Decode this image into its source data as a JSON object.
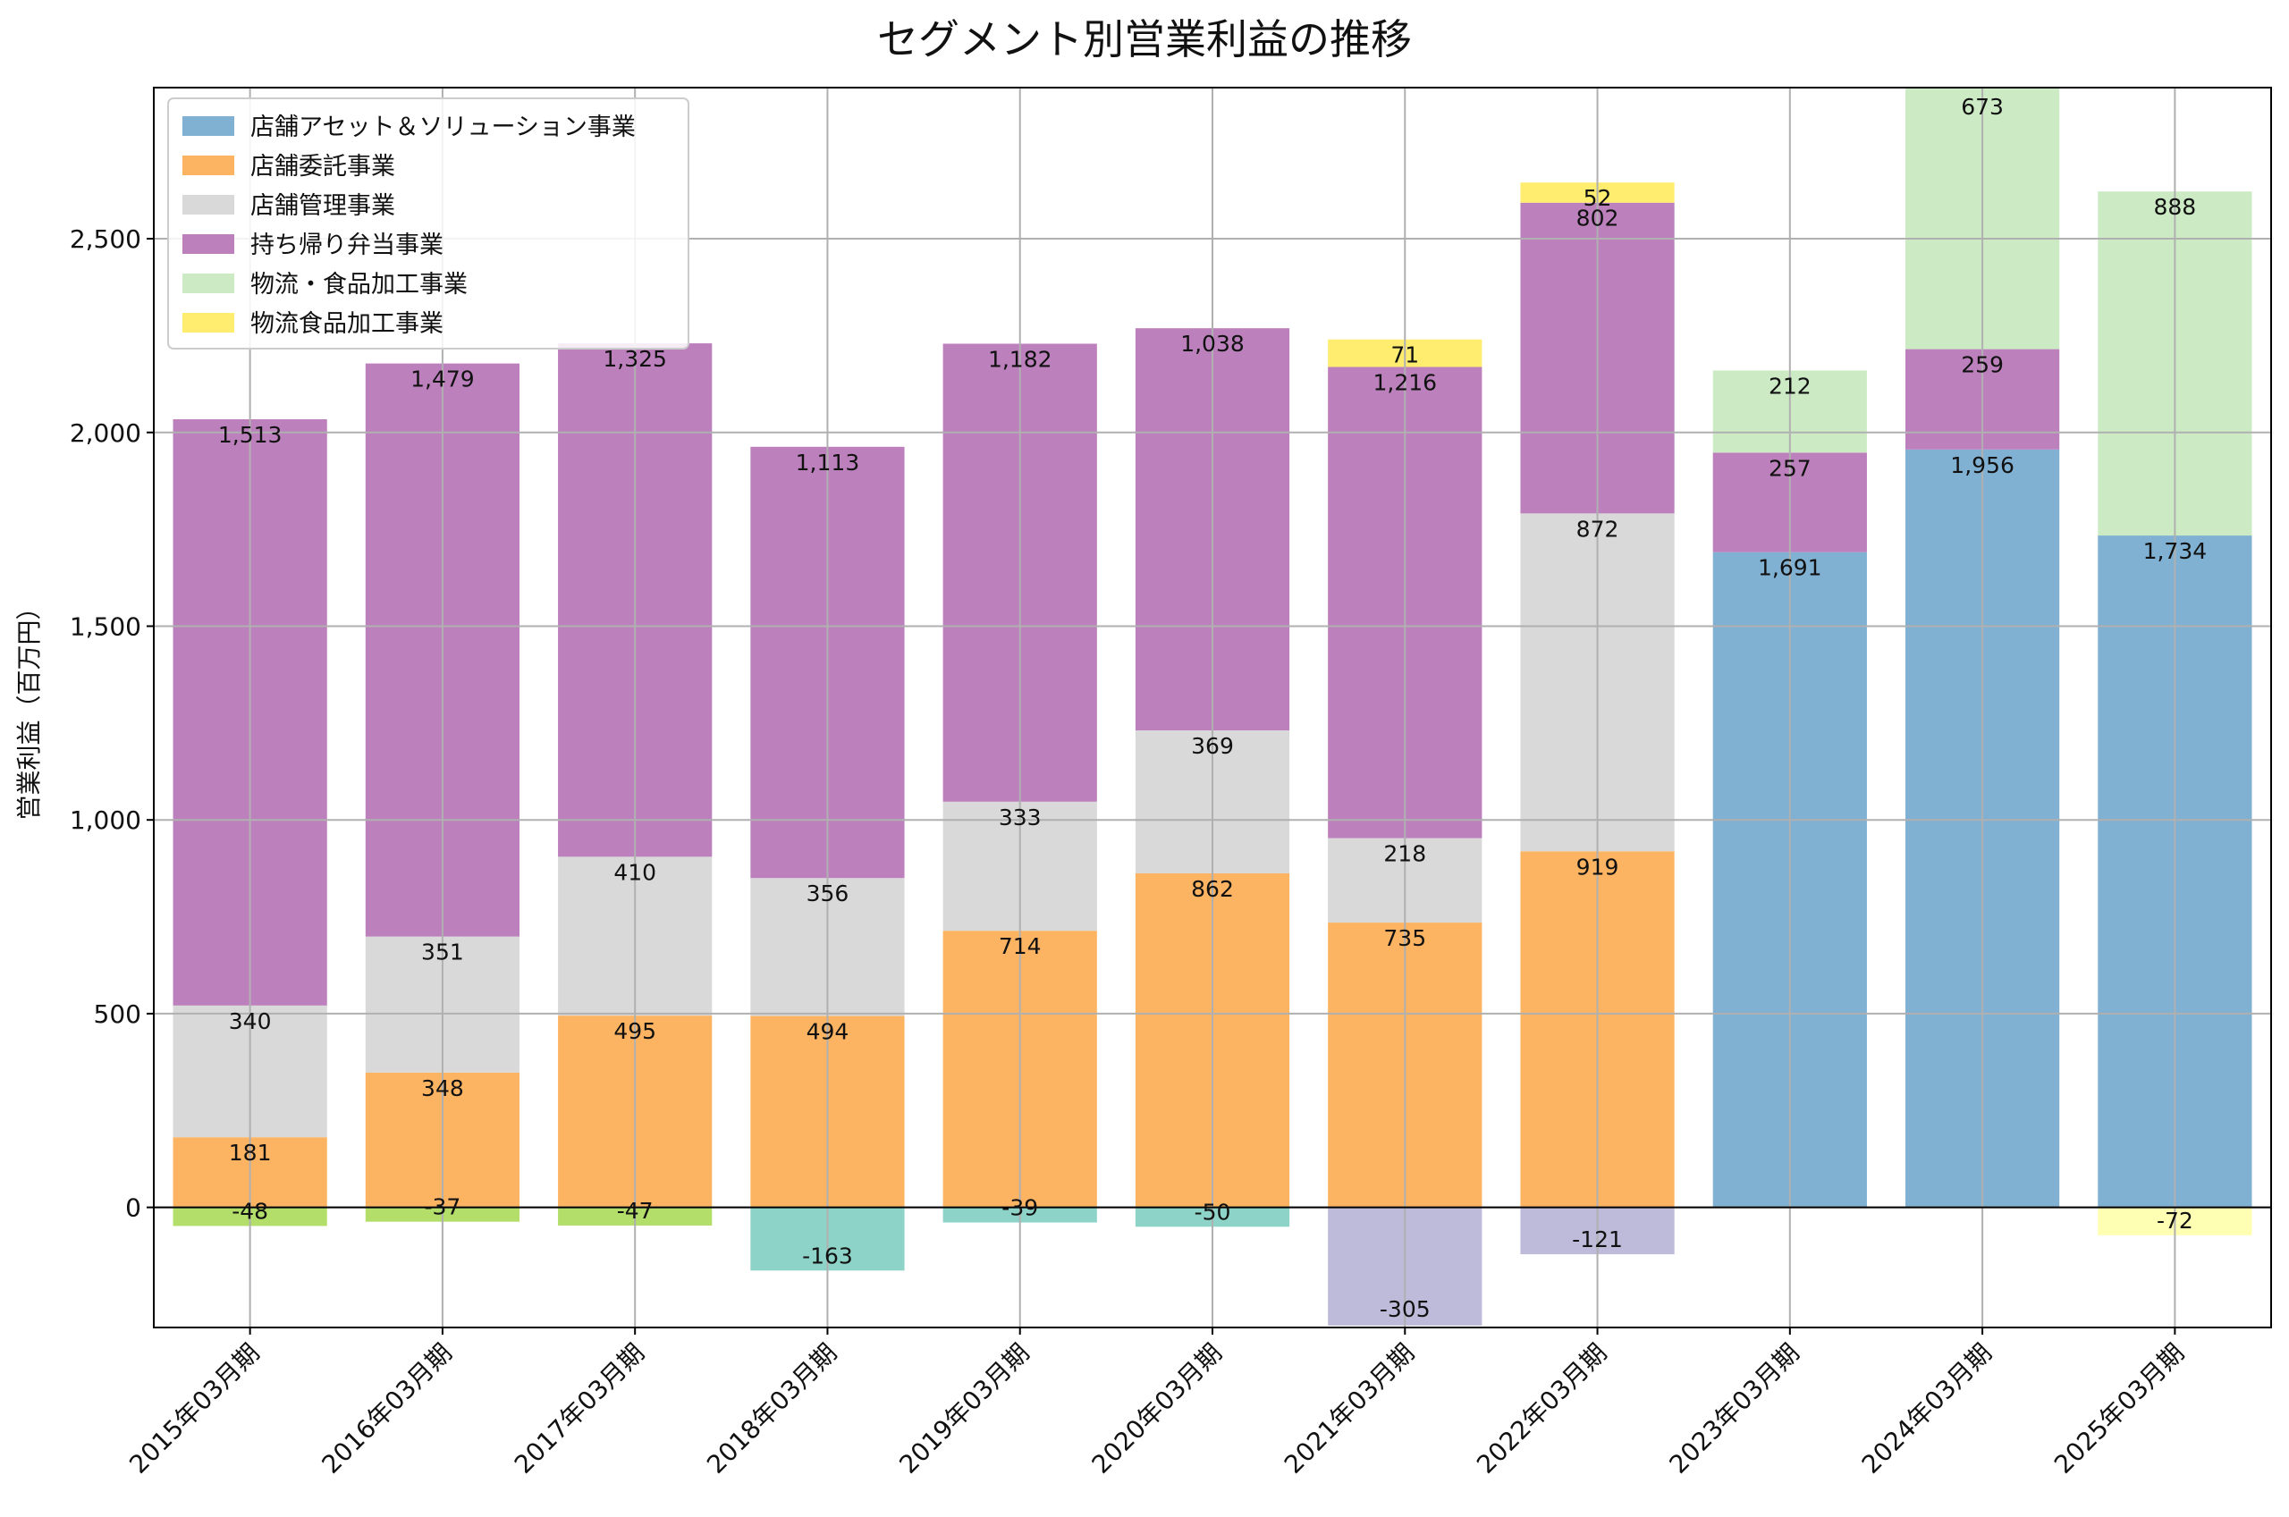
{
  "chart_data": {
    "type": "bar",
    "stacked": true,
    "title": "セグメント別営業利益の推移",
    "ylabel": "営業利益（百万円）",
    "xlabel": "",
    "ylim": [
      -310,
      2890
    ],
    "yticks": [
      0,
      500,
      1000,
      1500,
      2000,
      2500
    ],
    "ytick_labels": [
      "0",
      "500",
      "1,000",
      "1,500",
      "2,000",
      "2,500"
    ],
    "grid": true,
    "legend_position": "top-left",
    "categories": [
      "2015年03月期",
      "2016年03月期",
      "2017年03月期",
      "2018年03月期",
      "2019年03月期",
      "2020年03月期",
      "2021年03月期",
      "2022年03月期",
      "2023年03月期",
      "2024年03月期",
      "2025年03月期"
    ],
    "series": [
      {
        "name": "店舗アセット＆ソリューション事業",
        "color": "#80b1d3",
        "legend": true,
        "values": [
          null,
          null,
          null,
          null,
          null,
          null,
          null,
          null,
          1691,
          1956,
          1734
        ],
        "labels": [
          "",
          "",
          "",
          "",
          "",
          "",
          "",
          "",
          "1,691",
          "1,956",
          "1,734"
        ]
      },
      {
        "name": "店舗委託事業",
        "color": "#fdb462",
        "legend": true,
        "values": [
          181,
          348,
          495,
          494,
          714,
          862,
          735,
          919,
          null,
          null,
          null
        ],
        "labels": [
          "181",
          "348",
          "495",
          "494",
          "714",
          "862",
          "735",
          "919",
          "",
          "",
          ""
        ]
      },
      {
        "name": "店舗管理事業",
        "color": "#d9d9d9",
        "legend": true,
        "values": [
          340,
          351,
          410,
          356,
          333,
          369,
          218,
          872,
          null,
          null,
          null
        ],
        "labels": [
          "340",
          "351",
          "410",
          "356",
          "333",
          "369",
          "218",
          "872",
          "",
          "",
          ""
        ]
      },
      {
        "name": "持ち帰り弁当事業",
        "color": "#bc80bd",
        "legend": true,
        "values": [
          1513,
          1479,
          1325,
          1113,
          1182,
          1038,
          1216,
          802,
          257,
          259,
          null
        ],
        "labels": [
          "1,513",
          "1,479",
          "1,325",
          "1,113",
          "1,182",
          "1,038",
          "1,216",
          "802",
          "257",
          "259",
          ""
        ]
      },
      {
        "name": "物流・食品加工事業",
        "color": "#ccebc5",
        "legend": true,
        "values": [
          null,
          null,
          null,
          null,
          null,
          null,
          null,
          null,
          212,
          673,
          888
        ],
        "labels": [
          "",
          "",
          "",
          "",
          "",
          "",
          "",
          "",
          "212",
          "673",
          "888"
        ]
      },
      {
        "name": "物流食品加工事業",
        "color": "#ffed6f",
        "legend": true,
        "values": [
          null,
          null,
          null,
          null,
          null,
          null,
          71,
          52,
          null,
          null,
          null
        ],
        "labels": [
          "",
          "",
          "",
          "",
          "",
          "",
          "71",
          "52",
          "",
          "",
          ""
        ]
      },
      {
        "name": "",
        "color": "#b3de69",
        "legend": false,
        "values": [
          -48,
          -37,
          -47,
          null,
          null,
          null,
          null,
          null,
          null,
          null,
          null
        ],
        "labels": [
          "-48",
          "-37",
          "-47",
          "",
          "",
          "",
          "",
          "",
          "",
          "",
          ""
        ]
      },
      {
        "name": "",
        "color": "#8dd3c7",
        "legend": false,
        "values": [
          null,
          null,
          null,
          -163,
          -39,
          -50,
          null,
          null,
          null,
          null,
          null
        ],
        "labels": [
          "",
          "",
          "",
          "-163",
          "-39",
          "-50",
          "",
          "",
          "",
          "",
          ""
        ]
      },
      {
        "name": "",
        "color": "#bebada",
        "legend": false,
        "values": [
          null,
          null,
          null,
          null,
          null,
          null,
          -305,
          -121,
          null,
          null,
          null
        ],
        "labels": [
          "",
          "",
          "",
          "",
          "",
          "",
          "-305",
          "-121",
          "",
          "",
          ""
        ]
      },
      {
        "name": "",
        "color": "#ffffb3",
        "legend": false,
        "values": [
          null,
          null,
          null,
          null,
          null,
          null,
          null,
          null,
          null,
          null,
          -72
        ],
        "labels": [
          "",
          "",
          "",
          "",
          "",
          "",
          "",
          "",
          "",
          "",
          "-72"
        ]
      }
    ]
  }
}
